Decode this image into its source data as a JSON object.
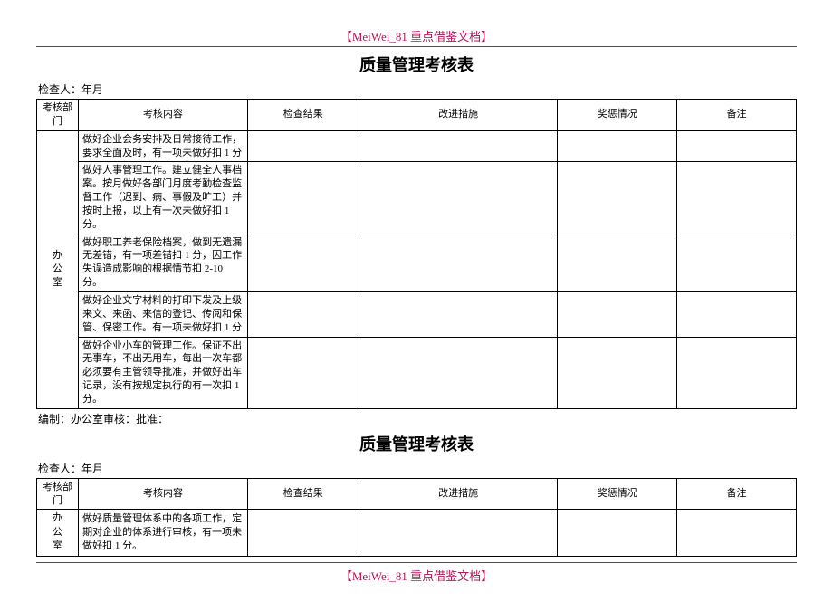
{
  "watermark": "【MeiWei_81 重点借鉴文档】",
  "colors": {
    "accent": "#b01858",
    "border": "#000000",
    "text": "#000000",
    "background": "#ffffff"
  },
  "title": "质量管理考核表",
  "inspector_line": "检查人：年月",
  "footer_line": "编制：办公室审核：批准：",
  "headers": {
    "dept": "考核部门",
    "content": "考核内容",
    "result": "检查结果",
    "improve": "改进措施",
    "reward": "奖惩情况",
    "remark": "备注"
  },
  "table1": {
    "dept_chars": [
      "办",
      "公",
      "室"
    ],
    "rows": [
      "做好企业会务安排及日常接待工作，要求全面及时，有一项未做好扣 1 分",
      "做好人事管理工作。建立健全人事档案。按月做好各部门月度考勤检查监督工作（迟到、病、事假及旷工）并按时上报，以上有一次未做好扣 1 分。",
      "做好职工养老保险档案，做到无遗漏无差错，有一项差错扣 1 分，因工作失误造成影响的根据情节扣 2-10 分。",
      "做好企业文字材料的打印下发及上级来文、来函、来信的登记、传阅和保管、保密工作。有一项未做好扣 1 分",
      "做好企业小车的管理工作。保证不出无事车，不出无用车，每出一次车都必须要有主管领导批准，并做好出车记录，没有按规定执行的有一次扣 1 分。"
    ]
  },
  "table2": {
    "dept_chars": [
      "办",
      "公",
      "室"
    ],
    "rows": [
      "做好质量管理体系中的各项工作，定期对企业的体系进行审核，有一项未做好扣 1 分。"
    ]
  }
}
